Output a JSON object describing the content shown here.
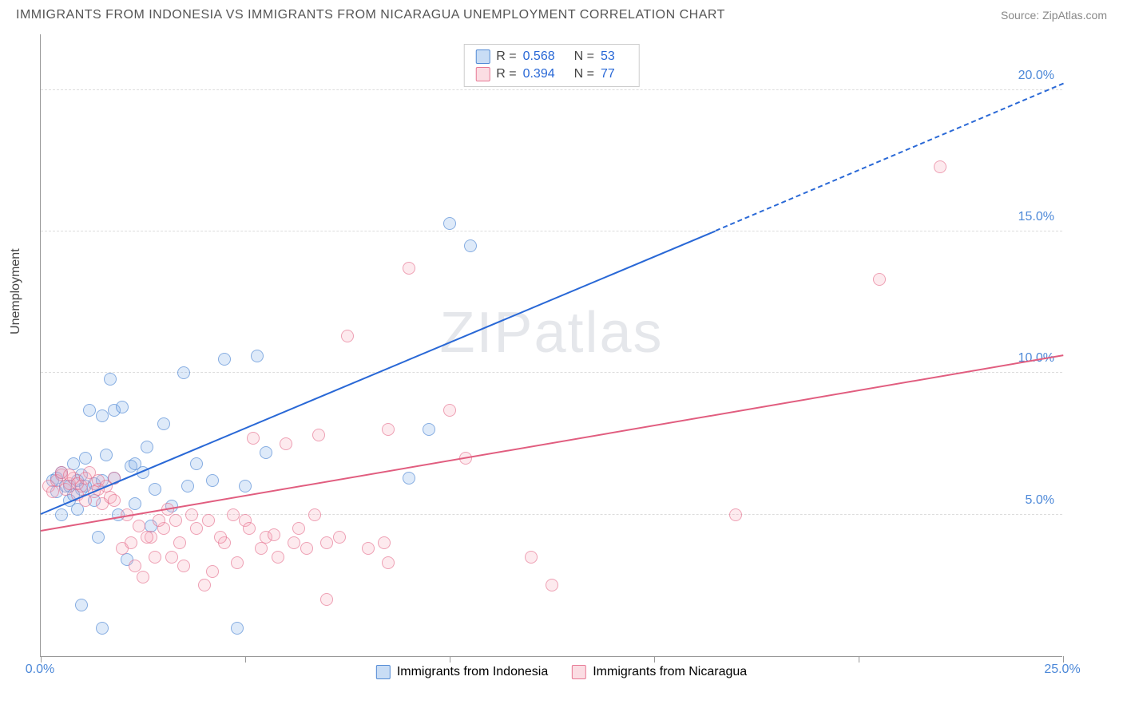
{
  "title": "IMMIGRANTS FROM INDONESIA VS IMMIGRANTS FROM NICARAGUA UNEMPLOYMENT CORRELATION CHART",
  "source_label": "Source: ",
  "source_name": "ZipAtlas.com",
  "watermark": {
    "part1": "ZIP",
    "part2": "atlas"
  },
  "ylabel": "Unemployment",
  "chart": {
    "type": "scatter",
    "xlim": [
      0,
      25
    ],
    "ylim": [
      0,
      22
    ],
    "xticks": [
      0,
      5,
      10,
      15,
      20,
      25
    ],
    "xtick_labels": [
      "0.0%",
      "",
      "",
      "",
      "",
      "25.0%"
    ],
    "yticks": [
      5,
      10,
      15,
      20
    ],
    "ytick_labels": [
      "5.0%",
      "10.0%",
      "15.0%",
      "20.0%"
    ],
    "grid_color": "#dddddd",
    "axis_color": "#999999",
    "background": "#ffffff",
    "series": [
      {
        "name": "Immigrants from Indonesia",
        "color_fill": "rgba(120,170,230,0.35)",
        "color_stroke": "#4c88d8",
        "marker_size": 16,
        "r_value": "0.568",
        "n_value": "53",
        "trend": {
          "x1": 0,
          "y1": 5.0,
          "x2": 16.5,
          "y2": 15.0,
          "x2_dash": 25,
          "y2_dash": 20.2,
          "color": "#2968d6",
          "width": 2
        },
        "points": [
          [
            0.3,
            6.2
          ],
          [
            0.4,
            5.8
          ],
          [
            0.5,
            6.5
          ],
          [
            0.6,
            6.0
          ],
          [
            0.7,
            5.5
          ],
          [
            0.8,
            6.8
          ],
          [
            0.9,
            5.2
          ],
          [
            1.0,
            6.4
          ],
          [
            1.0,
            5.9
          ],
          [
            1.1,
            7.0
          ],
          [
            1.2,
            8.7
          ],
          [
            1.3,
            6.1
          ],
          [
            1.4,
            4.2
          ],
          [
            1.5,
            8.5
          ],
          [
            1.6,
            7.1
          ],
          [
            1.7,
            9.8
          ],
          [
            1.8,
            8.7
          ],
          [
            1.8,
            6.3
          ],
          [
            2.0,
            8.8
          ],
          [
            2.1,
            3.4
          ],
          [
            2.2,
            6.7
          ],
          [
            2.3,
            5.4
          ],
          [
            2.5,
            6.5
          ],
          [
            2.6,
            7.4
          ],
          [
            2.8,
            5.9
          ],
          [
            3.0,
            8.2
          ],
          [
            3.2,
            5.3
          ],
          [
            3.5,
            10.0
          ],
          [
            3.6,
            6.0
          ],
          [
            3.8,
            6.8
          ],
          [
            4.2,
            6.2
          ],
          [
            4.5,
            10.5
          ],
          [
            5.0,
            6.0
          ],
          [
            5.3,
            10.6
          ],
          [
            5.5,
            7.2
          ],
          [
            1.0,
            1.8
          ],
          [
            1.5,
            1.0
          ],
          [
            4.8,
            1.0
          ],
          [
            2.7,
            4.6
          ],
          [
            10.0,
            15.3
          ],
          [
            10.5,
            14.5
          ],
          [
            9.0,
            6.3
          ],
          [
            9.5,
            8.0
          ],
          [
            0.5,
            5.0
          ],
          [
            0.4,
            6.3
          ],
          [
            0.7,
            6.0
          ],
          [
            0.8,
            5.7
          ],
          [
            0.9,
            6.2
          ],
          [
            1.1,
            6.0
          ],
          [
            1.3,
            5.5
          ],
          [
            1.5,
            6.2
          ],
          [
            1.9,
            5.0
          ],
          [
            2.3,
            6.8
          ]
        ]
      },
      {
        "name": "Immigrants from Nicaragua",
        "color_fill": "rgba(245,170,185,0.35)",
        "color_stroke": "#e16e8c",
        "marker_size": 16,
        "r_value": "0.394",
        "n_value": "77",
        "trend": {
          "x1": 0,
          "y1": 4.4,
          "x2": 25,
          "y2": 10.6,
          "color": "#e15d7f",
          "width": 2
        },
        "points": [
          [
            0.2,
            6.0
          ],
          [
            0.3,
            5.8
          ],
          [
            0.4,
            6.2
          ],
          [
            0.5,
            6.4
          ],
          [
            0.6,
            5.9
          ],
          [
            0.7,
            6.1
          ],
          [
            0.8,
            6.3
          ],
          [
            0.9,
            5.7
          ],
          [
            1.0,
            6.0
          ],
          [
            1.1,
            5.5
          ],
          [
            1.2,
            6.5
          ],
          [
            1.3,
            5.8
          ],
          [
            1.4,
            6.2
          ],
          [
            1.5,
            5.4
          ],
          [
            1.6,
            6.0
          ],
          [
            1.7,
            5.6
          ],
          [
            1.8,
            6.3
          ],
          [
            2.0,
            3.8
          ],
          [
            2.2,
            4.0
          ],
          [
            2.3,
            3.2
          ],
          [
            2.5,
            2.8
          ],
          [
            2.7,
            4.2
          ],
          [
            2.8,
            3.5
          ],
          [
            3.0,
            4.5
          ],
          [
            3.2,
            3.5
          ],
          [
            3.3,
            4.8
          ],
          [
            3.5,
            3.2
          ],
          [
            3.8,
            4.5
          ],
          [
            4.0,
            2.5
          ],
          [
            4.2,
            3.0
          ],
          [
            4.5,
            4.0
          ],
          [
            4.8,
            3.3
          ],
          [
            5.0,
            4.8
          ],
          [
            5.2,
            7.7
          ],
          [
            5.5,
            4.2
          ],
          [
            5.8,
            3.5
          ],
          [
            6.0,
            7.5
          ],
          [
            6.2,
            4.0
          ],
          [
            6.5,
            3.8
          ],
          [
            6.8,
            7.8
          ],
          [
            7.0,
            4.0
          ],
          [
            7.0,
            2.0
          ],
          [
            7.5,
            11.3
          ],
          [
            8.4,
            4.0
          ],
          [
            8.5,
            3.3
          ],
          [
            9.0,
            13.7
          ],
          [
            10.0,
            8.7
          ],
          [
            10.4,
            7.0
          ],
          [
            12.0,
            3.5
          ],
          [
            12.5,
            2.5
          ],
          [
            17.0,
            5.0
          ],
          [
            20.5,
            13.3
          ],
          [
            22.0,
            17.3
          ],
          [
            0.5,
            6.5
          ],
          [
            0.7,
            6.4
          ],
          [
            0.9,
            6.1
          ],
          [
            1.1,
            6.3
          ],
          [
            1.4,
            5.9
          ],
          [
            1.8,
            5.5
          ],
          [
            2.1,
            5.0
          ],
          [
            2.4,
            4.6
          ],
          [
            2.6,
            4.2
          ],
          [
            2.9,
            4.8
          ],
          [
            3.1,
            5.2
          ],
          [
            3.4,
            4.0
          ],
          [
            3.7,
            5.0
          ],
          [
            4.1,
            4.8
          ],
          [
            4.4,
            4.2
          ],
          [
            4.7,
            5.0
          ],
          [
            5.1,
            4.5
          ],
          [
            5.4,
            3.8
          ],
          [
            5.7,
            4.3
          ],
          [
            6.3,
            4.5
          ],
          [
            6.7,
            5.0
          ],
          [
            7.3,
            4.2
          ],
          [
            8.0,
            3.8
          ],
          [
            8.5,
            8.0
          ]
        ]
      }
    ]
  },
  "stats_labels": {
    "r": "R =",
    "n": "N ="
  },
  "legend": {
    "s1": "Immigrants from Indonesia",
    "s2": "Immigrants from Nicaragua"
  },
  "tick_colors": {
    "value": "#4c88d8"
  }
}
